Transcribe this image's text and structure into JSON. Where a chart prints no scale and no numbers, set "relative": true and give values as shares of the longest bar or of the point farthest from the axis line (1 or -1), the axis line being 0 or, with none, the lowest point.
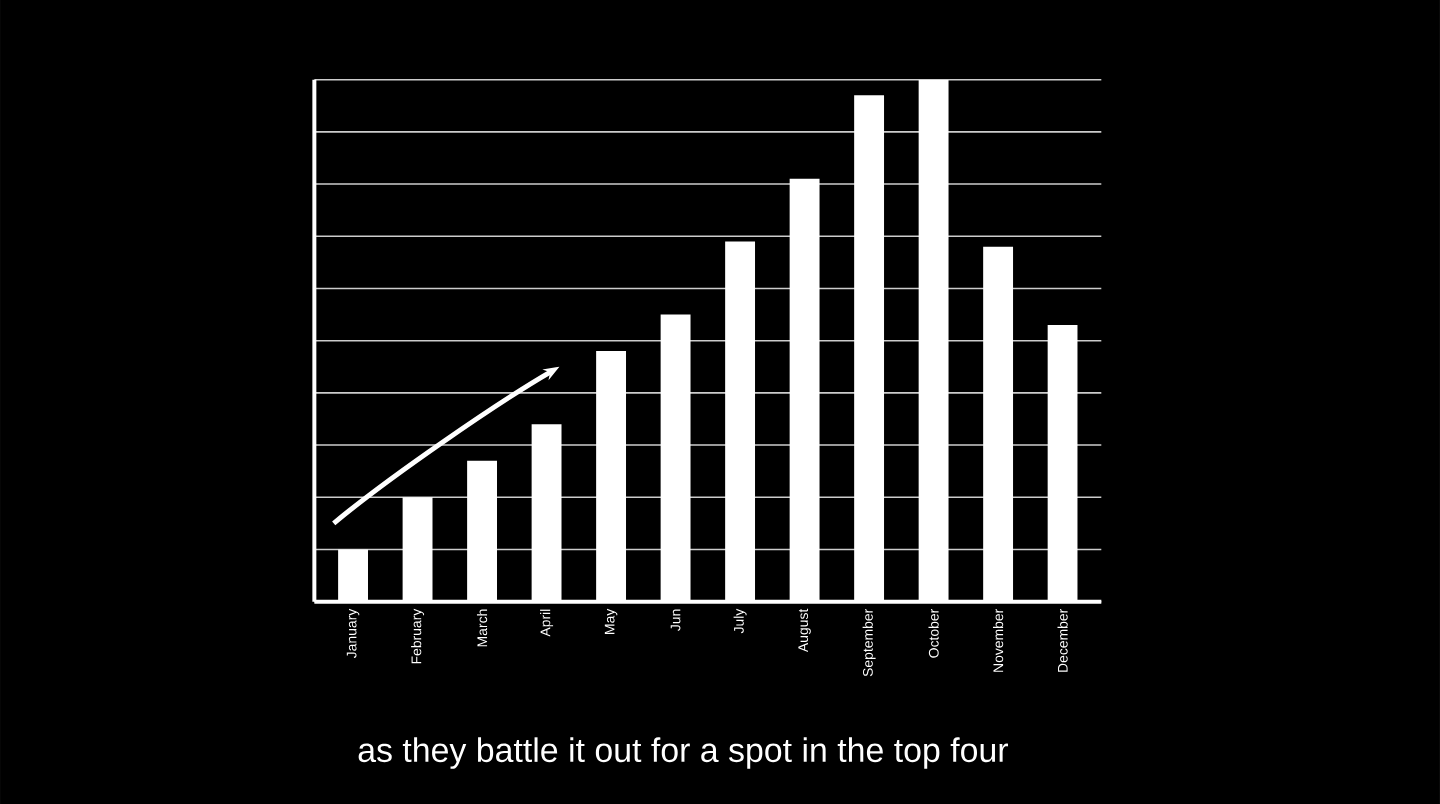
{
  "chart_data": {
    "type": "bar",
    "relative": true,
    "grid": "y",
    "color": "#ffffff",
    "categories": [
      "January",
      "February",
      "March",
      "April",
      "May",
      "Jun",
      "July",
      "August",
      "September",
      "October",
      "November",
      "December"
    ],
    "values": [
      0.1,
      0.2,
      0.27,
      0.34,
      0.48,
      0.55,
      0.69,
      0.81,
      0.97,
      1,
      0.68,
      0.53
    ],
    "annotations": [
      "as they battle it out for a spot in the top four"
    ]
  }
}
